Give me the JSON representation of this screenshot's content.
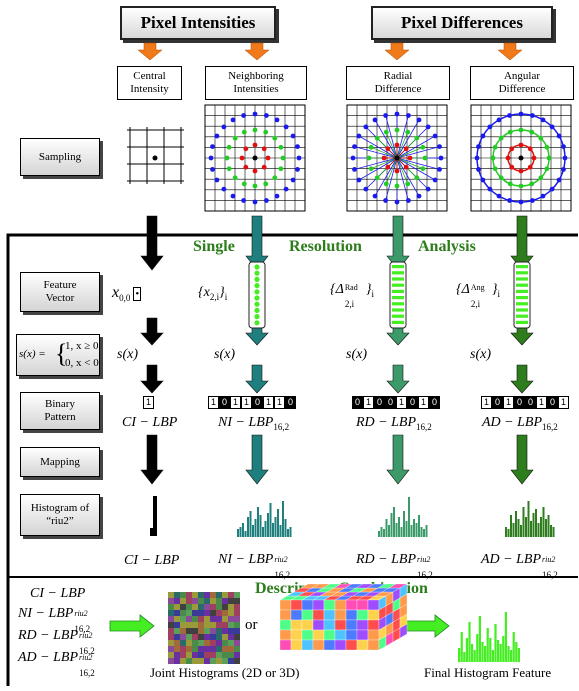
{
  "headers": {
    "pixel_intensities": "Pixel Intensities",
    "pixel_differences": "Pixel Differences"
  },
  "subheads": {
    "central": [
      "Central",
      "Intensity"
    ],
    "neighboring": [
      "Neighboring",
      "Intensities"
    ],
    "radial": [
      "Radial",
      "Difference"
    ],
    "angular": [
      "Angular",
      "Difference"
    ]
  },
  "row_labels": {
    "sampling": "Sampling",
    "feature_vector": [
      "Feature",
      "Vector"
    ],
    "binary_pattern": [
      "Binary",
      "Pattern"
    ],
    "mapping": "Mapping",
    "histogram": [
      "Histogram of",
      "“riu2”"
    ]
  },
  "single_resolution": [
    "Single",
    "Resolution",
    "Analysis"
  ],
  "s_func": {
    "lhs": "s(x) =",
    "case1": "1, x ≥ 0",
    "case2": "0, x < 0"
  },
  "sx": "s(x)",
  "feature": {
    "x00": "x",
    "x00_sub": "0,0",
    "nbr": "{x",
    "nbr_sub": "2,i",
    "rad": "{Δ",
    "rad_sup": "Rad",
    "rad_sub": "2,i",
    "ang": "{Δ",
    "ang_sup": "Ang",
    "ang_sub": "2,i",
    "i": "i"
  },
  "bits": {
    "ci": [
      "1"
    ],
    "ni": [
      "1",
      "0",
      "1",
      "1",
      "0",
      "1",
      "1",
      "0"
    ],
    "rd": [
      "0",
      "1",
      "0",
      "0",
      "1",
      "0",
      "1",
      "0"
    ],
    "ad": [
      "1",
      "0",
      "1",
      "0",
      "0",
      "1",
      "0",
      "1"
    ]
  },
  "bit_styles": {
    "ni": [
      0,
      1,
      0,
      0,
      1,
      0,
      0,
      1
    ],
    "rd": [
      1,
      0,
      1,
      1,
      0,
      1,
      0,
      1
    ],
    "ad": [
      0,
      1,
      0,
      1,
      1,
      0,
      1,
      0
    ]
  },
  "lbp": {
    "ci": "CI − LBP",
    "ni": "NI − LBP",
    "rd": "RD − LBP",
    "ad": "AD − LBP",
    "sub": "16,2",
    "sup": "riu2"
  },
  "combination": {
    "title": "Descriptors Combination",
    "or": "or",
    "joint": "Joint Histograms (2D or 3D)",
    "final": "Final Histogram Feature"
  },
  "colors": {
    "arrow_orange": "#f07a1a",
    "teal": "#1f7f7f",
    "mid_green": "#3c9a6a",
    "dark_green": "#2e7d1d",
    "bright_green": "#44ee22",
    "blue": "#1a1aee",
    "red": "#e01010",
    "green": "#22cc22"
  }
}
